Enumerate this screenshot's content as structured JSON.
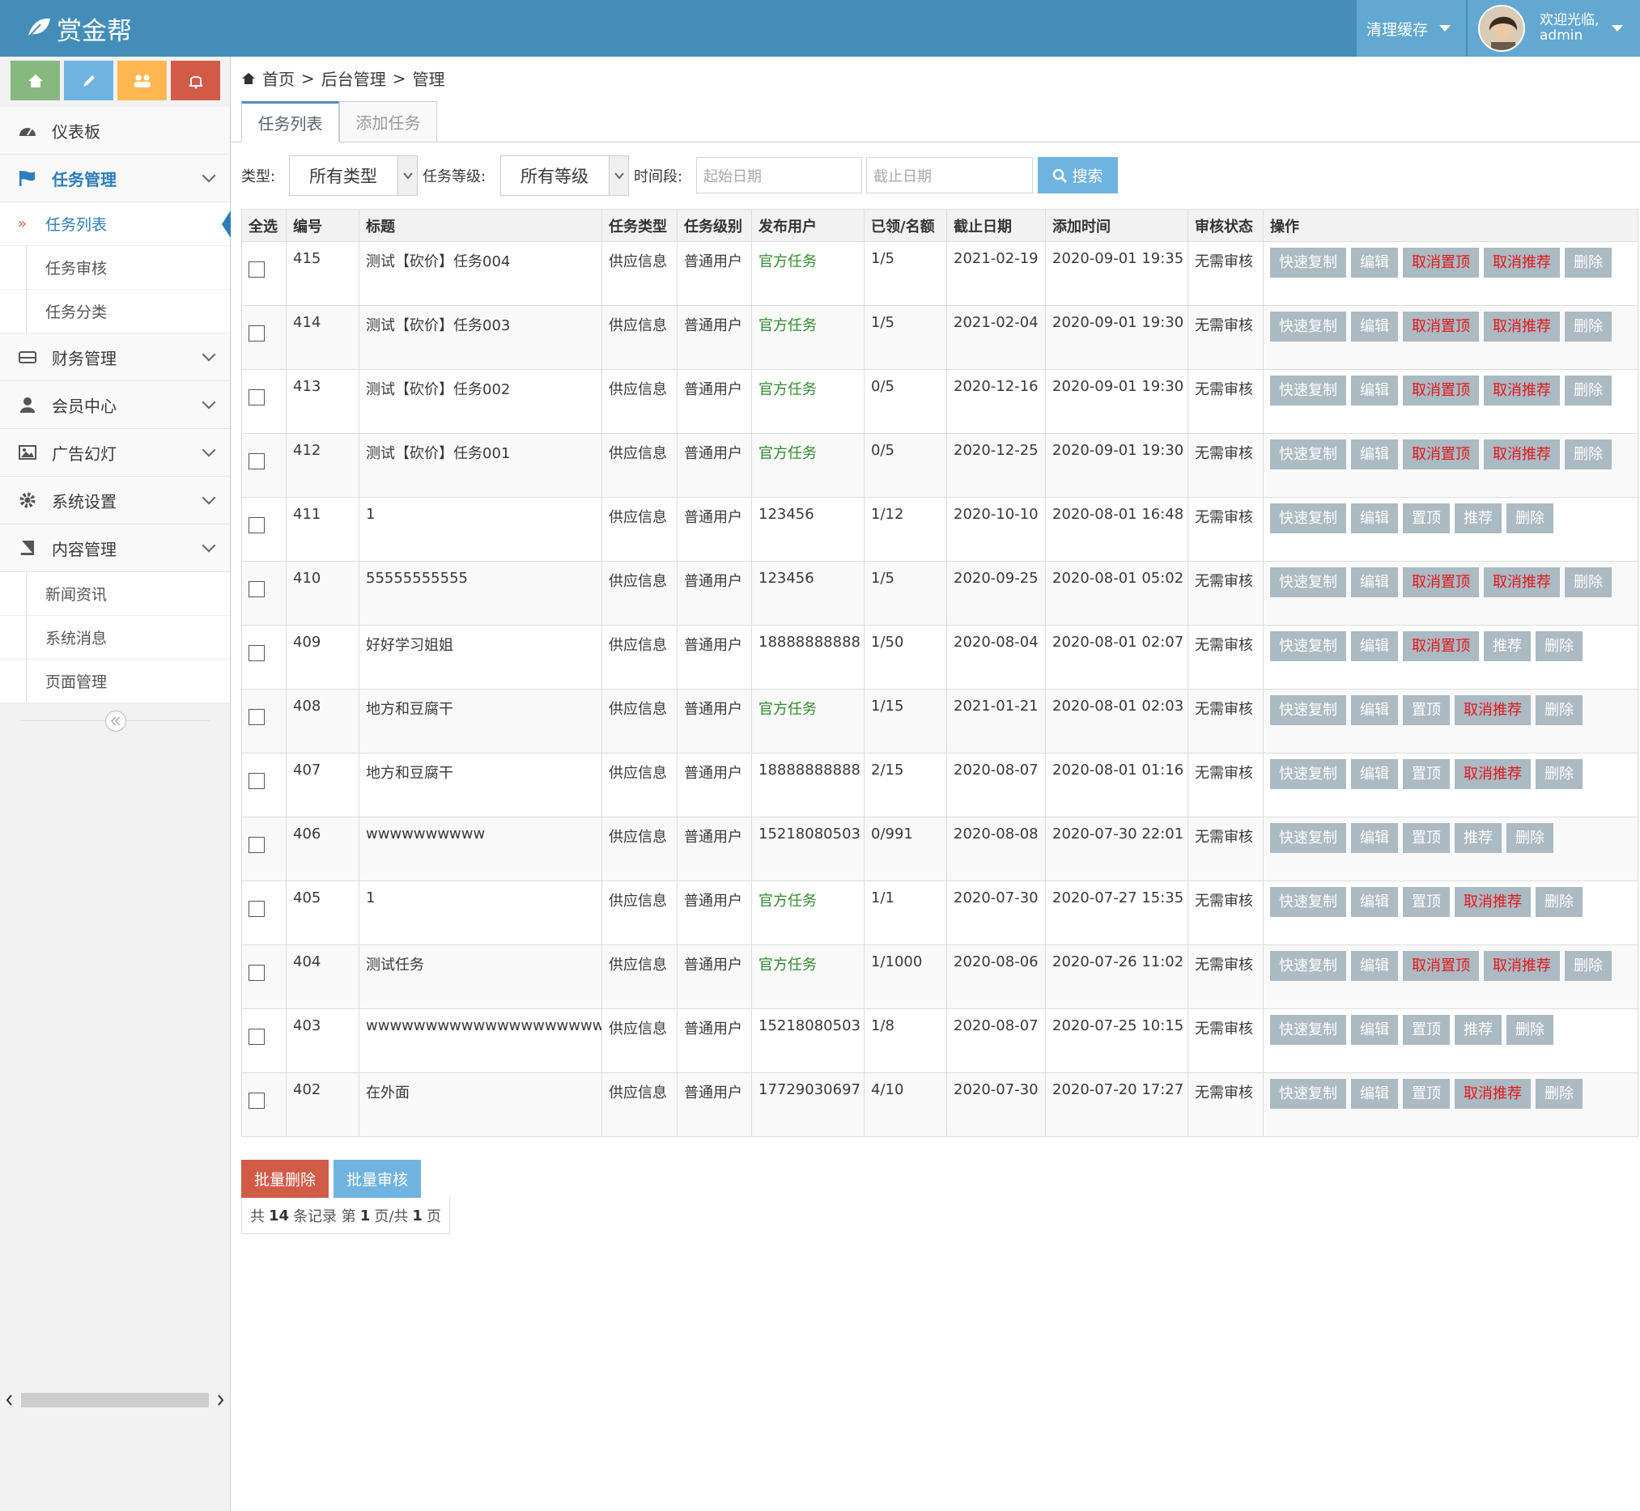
{
  "header": {
    "logo": "赏金帮",
    "clear_cache": "清理缓存",
    "welcome": "欢迎光临,",
    "user": "admin"
  },
  "sidebar": {
    "menu": [
      {
        "label": "仪表板"
      },
      {
        "label": "任务管理",
        "children": [
          "任务列表",
          "任务审核",
          "任务分类"
        ]
      },
      {
        "label": "财务管理"
      },
      {
        "label": "会员中心"
      },
      {
        "label": "广告幻灯"
      },
      {
        "label": "系统设置"
      },
      {
        "label": "内容管理",
        "children": [
          "新闻资讯",
          "系统消息",
          "页面管理"
        ]
      }
    ]
  },
  "breadcrumb": {
    "items": [
      "首页",
      "后台管理",
      "管理"
    ],
    "separator": ">"
  },
  "tabs": [
    "任务列表",
    "添加任务"
  ],
  "filters": {
    "type_label": "类型:",
    "type_value": "所有类型",
    "level_label": "任务等级:",
    "level_value": "所有等级",
    "period_label": "时间段:",
    "start_placeholder": "起始日期",
    "end_placeholder": "截止日期",
    "search": "搜索"
  },
  "table": {
    "columns": [
      "全选",
      "编号",
      "标题",
      "任务类型",
      "任务级别",
      "发布用户",
      "已领/名额",
      "截止日期",
      "添加时间",
      "审核状态",
      "操作"
    ],
    "rows": [
      {
        "id": 415,
        "title": "测试【砍价】任务004",
        "type": "供应信息",
        "level": "普通用户",
        "publisher": "官方任务",
        "publisher_color": "#2e8b2e",
        "quota": "1/5",
        "deadline": "2021-02-19",
        "added": "2020-09-01 19:35",
        "status": "无需审核",
        "actions": [
          {
            "label": "快速复制",
            "color": "#ffffff"
          },
          {
            "label": "编辑",
            "color": "#ffffff"
          },
          {
            "label": "取消置顶",
            "color": "#e3161b"
          },
          {
            "label": "取消推荐",
            "color": "#e3161b"
          },
          {
            "label": "删除",
            "color": "#ffffff"
          }
        ]
      },
      {
        "id": 414,
        "title": "测试【砍价】任务003",
        "type": "供应信息",
        "level": "普通用户",
        "publisher": "官方任务",
        "publisher_color": "#2e8b2e",
        "quota": "1/5",
        "deadline": "2021-02-04",
        "added": "2020-09-01 19:30",
        "status": "无需审核",
        "actions": [
          {
            "label": "快速复制",
            "color": "#ffffff"
          },
          {
            "label": "编辑",
            "color": "#ffffff"
          },
          {
            "label": "取消置顶",
            "color": "#e3161b"
          },
          {
            "label": "取消推荐",
            "color": "#e3161b"
          },
          {
            "label": "删除",
            "color": "#ffffff"
          }
        ]
      },
      {
        "id": 413,
        "title": "测试【砍价】任务002",
        "type": "供应信息",
        "level": "普通用户",
        "publisher": "官方任务",
        "publisher_color": "#2e8b2e",
        "quota": "0/5",
        "deadline": "2020-12-16",
        "added": "2020-09-01 19:30",
        "status": "无需审核",
        "actions": [
          {
            "label": "快速复制",
            "color": "#ffffff"
          },
          {
            "label": "编辑",
            "color": "#ffffff"
          },
          {
            "label": "取消置顶",
            "color": "#e3161b"
          },
          {
            "label": "取消推荐",
            "color": "#e3161b"
          },
          {
            "label": "删除",
            "color": "#ffffff"
          }
        ]
      },
      {
        "id": 412,
        "title": "测试【砍价】任务001",
        "type": "供应信息",
        "level": "普通用户",
        "publisher": "官方任务",
        "publisher_color": "#2e8b2e",
        "quota": "0/5",
        "deadline": "2020-12-25",
        "added": "2020-09-01 19:30",
        "status": "无需审核",
        "actions": [
          {
            "label": "快速复制",
            "color": "#ffffff"
          },
          {
            "label": "编辑",
            "color": "#ffffff"
          },
          {
            "label": "取消置顶",
            "color": "#e3161b"
          },
          {
            "label": "取消推荐",
            "color": "#e3161b"
          },
          {
            "label": "删除",
            "color": "#ffffff"
          }
        ]
      },
      {
        "id": 411,
        "title": "1",
        "type": "供应信息",
        "level": "普通用户",
        "publisher": "123456",
        "publisher_color": "#393939",
        "quota": "1/12",
        "deadline": "2020-10-10",
        "added": "2020-08-01 16:48",
        "status": "无需审核",
        "actions": [
          {
            "label": "快速复制",
            "color": "#ffffff"
          },
          {
            "label": "编辑",
            "color": "#ffffff"
          },
          {
            "label": "置顶",
            "color": "#ffffff"
          },
          {
            "label": "推荐",
            "color": "#ffffff"
          },
          {
            "label": "删除",
            "color": "#ffffff"
          }
        ]
      },
      {
        "id": 410,
        "title": "55555555555",
        "type": "供应信息",
        "level": "普通用户",
        "publisher": "123456",
        "publisher_color": "#393939",
        "quota": "1/5",
        "deadline": "2020-09-25",
        "added": "2020-08-01 05:02",
        "status": "无需审核",
        "actions": [
          {
            "label": "快速复制",
            "color": "#ffffff"
          },
          {
            "label": "编辑",
            "color": "#ffffff"
          },
          {
            "label": "取消置顶",
            "color": "#e3161b"
          },
          {
            "label": "取消推荐",
            "color": "#e3161b"
          },
          {
            "label": "删除",
            "color": "#ffffff"
          }
        ]
      },
      {
        "id": 409,
        "title": "好好学习姐姐",
        "type": "供应信息",
        "level": "普通用户",
        "publisher": "18888888888",
        "publisher_color": "#393939",
        "quota": "1/50",
        "deadline": "2020-08-04",
        "added": "2020-08-01 02:07",
        "status": "无需审核",
        "actions": [
          {
            "label": "快速复制",
            "color": "#ffffff"
          },
          {
            "label": "编辑",
            "color": "#ffffff"
          },
          {
            "label": "取消置顶",
            "color": "#e3161b"
          },
          {
            "label": "推荐",
            "color": "#ffffff"
          },
          {
            "label": "删除",
            "color": "#ffffff"
          }
        ]
      },
      {
        "id": 408,
        "title": "地方和豆腐干",
        "type": "供应信息",
        "level": "普通用户",
        "publisher": "官方任务",
        "publisher_color": "#2e8b2e",
        "quota": "1/15",
        "deadline": "2021-01-21",
        "added": "2020-08-01 02:03",
        "status": "无需审核",
        "actions": [
          {
            "label": "快速复制",
            "color": "#ffffff"
          },
          {
            "label": "编辑",
            "color": "#ffffff"
          },
          {
            "label": "置顶",
            "color": "#ffffff"
          },
          {
            "label": "取消推荐",
            "color": "#e3161b"
          },
          {
            "label": "删除",
            "color": "#ffffff"
          }
        ]
      },
      {
        "id": 407,
        "title": "地方和豆腐干",
        "type": "供应信息",
        "level": "普通用户",
        "publisher": "18888888888",
        "publisher_color": "#393939",
        "quota": "2/15",
        "deadline": "2020-08-07",
        "added": "2020-08-01 01:16",
        "status": "无需审核",
        "actions": [
          {
            "label": "快速复制",
            "color": "#ffffff"
          },
          {
            "label": "编辑",
            "color": "#ffffff"
          },
          {
            "label": "置顶",
            "color": "#ffffff"
          },
          {
            "label": "取消推荐",
            "color": "#e3161b"
          },
          {
            "label": "删除",
            "color": "#ffffff"
          }
        ]
      },
      {
        "id": 406,
        "title": "wwwwwwwwww",
        "type": "供应信息",
        "level": "普通用户",
        "publisher": "15218080503",
        "publisher_color": "#393939",
        "quota": "0/991",
        "deadline": "2020-08-08",
        "added": "2020-07-30 22:01",
        "status": "无需审核",
        "actions": [
          {
            "label": "快速复制",
            "color": "#ffffff"
          },
          {
            "label": "编辑",
            "color": "#ffffff"
          },
          {
            "label": "置顶",
            "color": "#ffffff"
          },
          {
            "label": "推荐",
            "color": "#ffffff"
          },
          {
            "label": "删除",
            "color": "#ffffff"
          }
        ]
      },
      {
        "id": 405,
        "title": "1",
        "type": "供应信息",
        "level": "普通用户",
        "publisher": "官方任务",
        "publisher_color": "#2e8b2e",
        "quota": "1/1",
        "deadline": "2020-07-30",
        "added": "2020-07-27 15:35",
        "status": "无需审核",
        "actions": [
          {
            "label": "快速复制",
            "color": "#ffffff"
          },
          {
            "label": "编辑",
            "color": "#ffffff"
          },
          {
            "label": "置顶",
            "color": "#ffffff"
          },
          {
            "label": "取消推荐",
            "color": "#e3161b"
          },
          {
            "label": "删除",
            "color": "#ffffff"
          }
        ]
      },
      {
        "id": 404,
        "title": "测试任务",
        "type": "供应信息",
        "level": "普通用户",
        "publisher": "官方任务",
        "publisher_color": "#2e8b2e",
        "quota": "1/1000",
        "deadline": "2020-08-06",
        "added": "2020-07-26 11:02",
        "status": "无需审核",
        "actions": [
          {
            "label": "快速复制",
            "color": "#ffffff"
          },
          {
            "label": "编辑",
            "color": "#ffffff"
          },
          {
            "label": "取消置顶",
            "color": "#e3161b"
          },
          {
            "label": "取消推荐",
            "color": "#e3161b"
          },
          {
            "label": "删除",
            "color": "#ffffff"
          }
        ]
      },
      {
        "id": 403,
        "title": "wwwwwwwwwwwwwwwwwwwwww",
        "type": "供应信息",
        "level": "普通用户",
        "publisher": "15218080503",
        "publisher_color": "#393939",
        "quota": "1/8",
        "deadline": "2020-08-07",
        "added": "2020-07-25 10:15",
        "status": "无需审核",
        "actions": [
          {
            "label": "快速复制",
            "color": "#ffffff"
          },
          {
            "label": "编辑",
            "color": "#ffffff"
          },
          {
            "label": "置顶",
            "color": "#ffffff"
          },
          {
            "label": "推荐",
            "color": "#ffffff"
          },
          {
            "label": "删除",
            "color": "#ffffff"
          }
        ]
      },
      {
        "id": 402,
        "title": "在外面",
        "type": "供应信息",
        "level": "普通用户",
        "publisher": "17729030697",
        "publisher_color": "#393939",
        "quota": "4/10",
        "deadline": "2020-07-30",
        "added": "2020-07-20 17:27",
        "status": "无需审核",
        "actions": [
          {
            "label": "快速复制",
            "color": "#ffffff"
          },
          {
            "label": "编辑",
            "color": "#ffffff"
          },
          {
            "label": "置顶",
            "color": "#ffffff"
          },
          {
            "label": "取消推荐",
            "color": "#e3161b"
          },
          {
            "label": "删除",
            "color": "#ffffff"
          }
        ]
      }
    ]
  },
  "batch_buttons": [
    "批量删除",
    "批量审核"
  ],
  "pagination": {
    "label_total": "共",
    "total": 14,
    "label_records": "条记录 第",
    "page": 1,
    "label_page_of": "页/共",
    "pages": 1,
    "label_pages": "页"
  }
}
